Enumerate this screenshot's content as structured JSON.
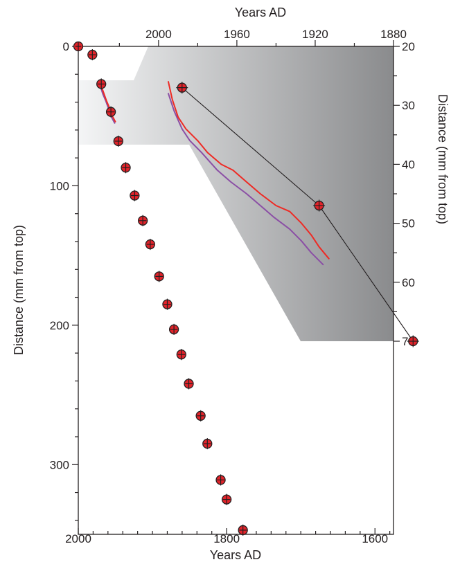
{
  "chart_data": {
    "type": "scatter",
    "title": "",
    "colors": {
      "point_fill": "#e2232a",
      "inset_red_line": "#ee2a24",
      "inset_purple_line": "#8b4fa5",
      "connector_line": "#231f20",
      "shade_light": "#f4f5f6",
      "shade_dark": "#8a8b8d",
      "axis": "#231f20"
    },
    "main": {
      "xlabel": "Years AD",
      "ylabel": "Distance (mm from top)",
      "x_reversed": true,
      "y_reversed": true,
      "xlim": [
        2000,
        1575
      ],
      "ylim": [
        0,
        350
      ],
      "x_ticks": [
        2000,
        1800,
        1600
      ],
      "y_ticks": [
        0,
        100,
        200,
        300
      ],
      "points": [
        {
          "x": 2000,
          "y": 0,
          "xerr": 4,
          "yerr": 3
        },
        {
          "x": 1981,
          "y": 6,
          "xerr": 5,
          "yerr": 4
        },
        {
          "x": 1969,
          "y": 27,
          "xerr": 5,
          "yerr": 4
        },
        {
          "x": 1956,
          "y": 47,
          "xerr": 5,
          "yerr": 4
        },
        {
          "x": 1946,
          "y": 68,
          "xerr": 5,
          "yerr": 4
        },
        {
          "x": 1936,
          "y": 87,
          "xerr": 5,
          "yerr": 4
        },
        {
          "x": 1924,
          "y": 107,
          "xerr": 5,
          "yerr": 4
        },
        {
          "x": 1913,
          "y": 125,
          "xerr": 5,
          "yerr": 4
        },
        {
          "x": 1903,
          "y": 142,
          "xerr": 5,
          "yerr": 4
        },
        {
          "x": 1891,
          "y": 165,
          "xerr": 5,
          "yerr": 4
        },
        {
          "x": 1880,
          "y": 185,
          "xerr": 5,
          "yerr": 4
        },
        {
          "x": 1871,
          "y": 203,
          "xerr": 5,
          "yerr": 4
        },
        {
          "x": 1861,
          "y": 221,
          "xerr": 5,
          "yerr": 4
        },
        {
          "x": 1851,
          "y": 242,
          "xerr": 5,
          "yerr": 4
        },
        {
          "x": 1835,
          "y": 265,
          "xerr": 5,
          "yerr": 4
        },
        {
          "x": 1826,
          "y": 285,
          "xerr": 5,
          "yerr": 4
        },
        {
          "x": 1808,
          "y": 311,
          "xerr": 5,
          "yerr": 4
        },
        {
          "x": 1800,
          "y": 325,
          "xerr": 5,
          "yerr": 4
        },
        {
          "x": 1778,
          "y": 347,
          "xerr": 5,
          "yerr": 4
        }
      ],
      "red_line": [
        [
          1970,
          27
        ],
        [
          1966,
          33
        ],
        [
          1962,
          39
        ],
        [
          1958,
          44
        ],
        [
          1954,
          50
        ],
        [
          1950,
          54
        ]
      ],
      "purple_line": [
        [
          1971,
          27
        ],
        [
          1967,
          34
        ],
        [
          1963,
          39
        ],
        [
          1959,
          45
        ],
        [
          1955,
          51
        ],
        [
          1951,
          55
        ]
      ]
    },
    "inset": {
      "xlabel": "Years AD",
      "ylabel": "Distance (mm from top)",
      "x_reversed": true,
      "y_reversed": true,
      "xlim": [
        2041,
        1880
      ],
      "ylim": [
        20,
        70
      ],
      "x_ticks": [
        2000,
        1960,
        1920,
        1880
      ],
      "y_ticks": [
        20,
        30,
        40,
        50,
        60,
        70
      ],
      "points": [
        {
          "x": 1988,
          "y": 27,
          "xerr": 3,
          "yerr": 1
        },
        {
          "x": 1918,
          "y": 47,
          "xerr": 3,
          "yerr": 1
        },
        {
          "x": 1870,
          "y": 70,
          "xerr": 3,
          "yerr": 1
        }
      ],
      "connector_line": [
        [
          1988,
          27
        ],
        [
          1918,
          47
        ],
        [
          1870,
          70
        ]
      ],
      "red_line": [
        [
          1995,
          26
        ],
        [
          1993,
          29
        ],
        [
          1990,
          32
        ],
        [
          1986,
          34
        ],
        [
          1980,
          36
        ],
        [
          1975,
          38
        ],
        [
          1968,
          40
        ],
        [
          1962,
          41
        ],
        [
          1955,
          43
        ],
        [
          1948,
          45
        ],
        [
          1940,
          47
        ],
        [
          1933,
          48
        ],
        [
          1927,
          50
        ],
        [
          1922,
          52
        ],
        [
          1918,
          54
        ],
        [
          1913,
          56
        ]
      ],
      "purple_line": [
        [
          1995,
          28
        ],
        [
          1992,
          31
        ],
        [
          1988,
          34
        ],
        [
          1984,
          36
        ],
        [
          1978,
          38
        ],
        [
          1970,
          41
        ],
        [
          1963,
          43
        ],
        [
          1955,
          45
        ],
        [
          1948,
          47
        ],
        [
          1941,
          49
        ],
        [
          1933,
          51
        ],
        [
          1927,
          53
        ],
        [
          1922,
          55
        ],
        [
          1916,
          57
        ]
      ]
    }
  }
}
